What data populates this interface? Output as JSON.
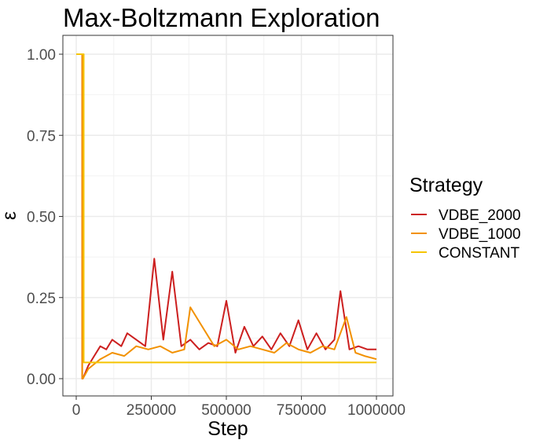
{
  "chart_data": {
    "type": "line",
    "title": "Max-Boltzmann Exploration",
    "xlabel": "Step",
    "ylabel": "ε",
    "xlim": [
      0,
      1000000
    ],
    "ylim": [
      0,
      1
    ],
    "x_ticks": [
      0,
      250000,
      500000,
      750000,
      1000000
    ],
    "x_tick_labels": [
      "0",
      "250000",
      "500000",
      "750000",
      "1000000"
    ],
    "y_ticks": [
      0,
      0.25,
      0.5,
      0.75,
      1.0
    ],
    "y_tick_labels": [
      "0.00",
      "0.25",
      "0.50",
      "0.75",
      "1.00"
    ],
    "grid": true,
    "legend": {
      "title": "Strategy",
      "position": "right",
      "entries": [
        "VDBE_2000",
        "VDBE_1000",
        "CONSTANT"
      ]
    },
    "series": [
      {
        "name": "VDBE_2000",
        "color": "#cc1f1f",
        "description_of_shape": "noisy",
        "x": [
          0,
          20000,
          20000,
          22000,
          40000,
          60000,
          80000,
          100000,
          120000,
          150000,
          170000,
          200000,
          230000,
          260000,
          290000,
          320000,
          350000,
          380000,
          410000,
          440000,
          470000,
          500000,
          530000,
          560000,
          590000,
          620000,
          650000,
          680000,
          710000,
          740000,
          770000,
          800000,
          830000,
          860000,
          880000,
          910000,
          940000,
          970000,
          1000000
        ],
        "y": [
          1.0,
          1.0,
          0.0,
          0.0,
          0.04,
          0.07,
          0.1,
          0.09,
          0.12,
          0.1,
          0.14,
          0.12,
          0.1,
          0.37,
          0.12,
          0.33,
          0.1,
          0.12,
          0.09,
          0.11,
          0.1,
          0.24,
          0.08,
          0.16,
          0.1,
          0.13,
          0.09,
          0.14,
          0.1,
          0.18,
          0.09,
          0.14,
          0.09,
          0.12,
          0.27,
          0.09,
          0.1,
          0.09,
          0.09
        ]
      },
      {
        "name": "VDBE_1000",
        "color": "#f29100",
        "x": [
          0,
          20000,
          20000,
          22000,
          40000,
          80000,
          120000,
          160000,
          200000,
          240000,
          280000,
          320000,
          360000,
          380000,
          420000,
          460000,
          500000,
          540000,
          580000,
          620000,
          660000,
          700000,
          740000,
          780000,
          820000,
          860000,
          900000,
          930000,
          960000,
          1000000
        ],
        "y": [
          1.0,
          1.0,
          0.0,
          0.0,
          0.03,
          0.06,
          0.08,
          0.07,
          0.1,
          0.09,
          0.1,
          0.08,
          0.09,
          0.22,
          0.16,
          0.1,
          0.12,
          0.09,
          0.1,
          0.09,
          0.08,
          0.11,
          0.09,
          0.08,
          0.1,
          0.09,
          0.19,
          0.08,
          0.07,
          0.06
        ]
      },
      {
        "name": "CONSTANT",
        "color": "#f5c400",
        "x": [
          0,
          25000,
          25000,
          1000000
        ],
        "y": [
          1.0,
          1.0,
          0.05,
          0.05
        ]
      }
    ]
  }
}
